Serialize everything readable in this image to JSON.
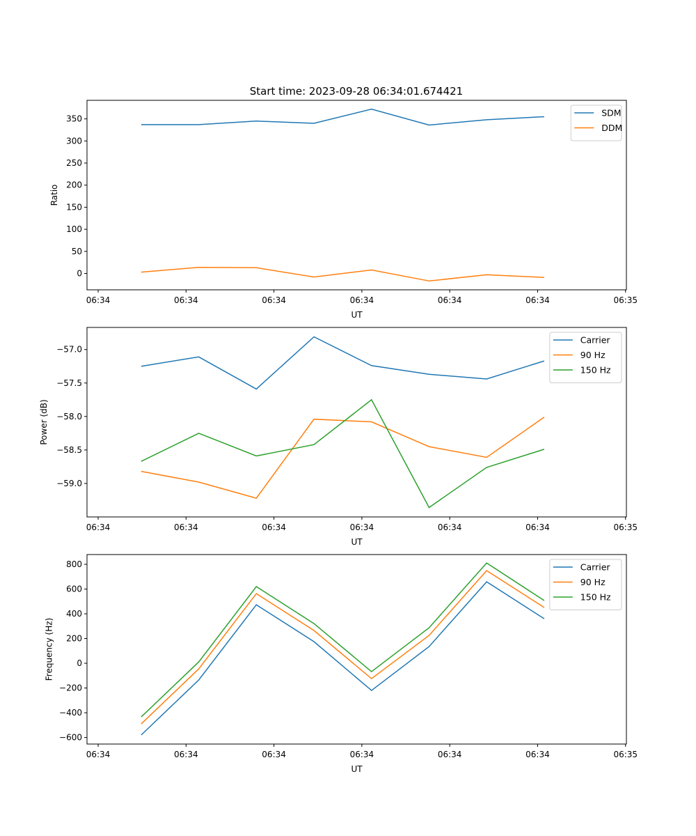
{
  "title": "Start time: 2023-09-28 06:34:01.674421",
  "colors": {
    "blue": "#1f77b4",
    "orange": "#ff7f0e",
    "green": "#2ca02c"
  },
  "chart_data": [
    {
      "type": "line",
      "xlabel": "UT",
      "ylabel": "Ratio",
      "x": [
        4.9,
        11.45,
        18.0,
        24.55,
        31.1,
        37.65,
        44.2,
        50.75
      ],
      "xlim": [
        -1.27,
        60.1
      ],
      "xticks": [
        0,
        10,
        20,
        30,
        40,
        50,
        60
      ],
      "xtick_labels": [
        "06:34",
        "06:34",
        "06:34",
        "06:34",
        "06:34",
        "06:34",
        "06:35"
      ],
      "ylim": [
        -37,
        392
      ],
      "yticks": [
        0,
        50,
        100,
        150,
        200,
        250,
        300,
        350
      ],
      "ytick_labels": [
        "0",
        "50",
        "100",
        "150",
        "200",
        "250",
        "300",
        "350"
      ],
      "legend": "top-right",
      "series": [
        {
          "name": "SDM",
          "color": "#1f77b4",
          "values": [
            337,
            337,
            345,
            340,
            372,
            336,
            348,
            355
          ]
        },
        {
          "name": "DDM",
          "color": "#ff7f0e",
          "values": [
            3,
            14,
            13,
            -8,
            8,
            -17,
            -3,
            -9
          ]
        }
      ]
    },
    {
      "type": "line",
      "xlabel": "UT",
      "ylabel": "Power (dB)",
      "x": [
        4.9,
        11.45,
        18.0,
        24.55,
        31.1,
        37.65,
        44.2,
        50.75
      ],
      "xlim": [
        -1.27,
        60.1
      ],
      "xticks": [
        0,
        10,
        20,
        30,
        40,
        50,
        60
      ],
      "xtick_labels": [
        "06:34",
        "06:34",
        "06:34",
        "06:34",
        "06:34",
        "06:34",
        "06:35"
      ],
      "ylim": [
        -59.5,
        -56.67
      ],
      "yticks": [
        -59.0,
        -58.5,
        -58.0,
        -57.5,
        -57.0
      ],
      "ytick_labels": [
        "−59.0",
        "−58.5",
        "−58.0",
        "−57.5",
        "−57.0"
      ],
      "legend": "top-right",
      "series": [
        {
          "name": "Carrier",
          "color": "#1f77b4",
          "values": [
            -57.25,
            -57.11,
            -57.59,
            -56.81,
            -57.24,
            -57.37,
            -57.44,
            -57.17
          ]
        },
        {
          "name": "90 Hz",
          "color": "#ff7f0e",
          "values": [
            -58.82,
            -58.98,
            -59.22,
            -58.04,
            -58.08,
            -58.45,
            -58.61,
            -58.01
          ]
        },
        {
          "name": "150 Hz",
          "color": "#2ca02c",
          "values": [
            -58.67,
            -58.25,
            -58.59,
            -58.42,
            -57.75,
            -59.36,
            -58.76,
            -58.49
          ]
        }
      ]
    },
    {
      "type": "line",
      "xlabel": "UT",
      "ylabel": "Frequency (Hz)",
      "x": [
        4.9,
        11.45,
        18.0,
        24.55,
        31.1,
        37.65,
        44.2,
        50.75
      ],
      "xlim": [
        -1.27,
        60.1
      ],
      "xticks": [
        0,
        10,
        20,
        30,
        40,
        50,
        60
      ],
      "xtick_labels": [
        "06:34",
        "06:34",
        "06:34",
        "06:34",
        "06:34",
        "06:34",
        "06:35"
      ],
      "ylim": [
        -653,
        879
      ],
      "yticks": [
        -600,
        -400,
        -200,
        0,
        200,
        400,
        600,
        800
      ],
      "ytick_labels": [
        "−600",
        "−400",
        "−200",
        "0",
        "200",
        "400",
        "600",
        "800"
      ],
      "legend": "top-right",
      "series": [
        {
          "name": "Carrier",
          "color": "#1f77b4",
          "values": [
            -580,
            -135,
            473,
            175,
            -220,
            135,
            659,
            360
          ]
        },
        {
          "name": "90 Hz",
          "color": "#ff7f0e",
          "values": [
            -490,
            -45,
            563,
            265,
            -124,
            225,
            749,
            451
          ]
        },
        {
          "name": "150 Hz",
          "color": "#2ca02c",
          "values": [
            -434,
            11,
            620,
            321,
            -68,
            287,
            811,
            507
          ]
        }
      ]
    }
  ]
}
